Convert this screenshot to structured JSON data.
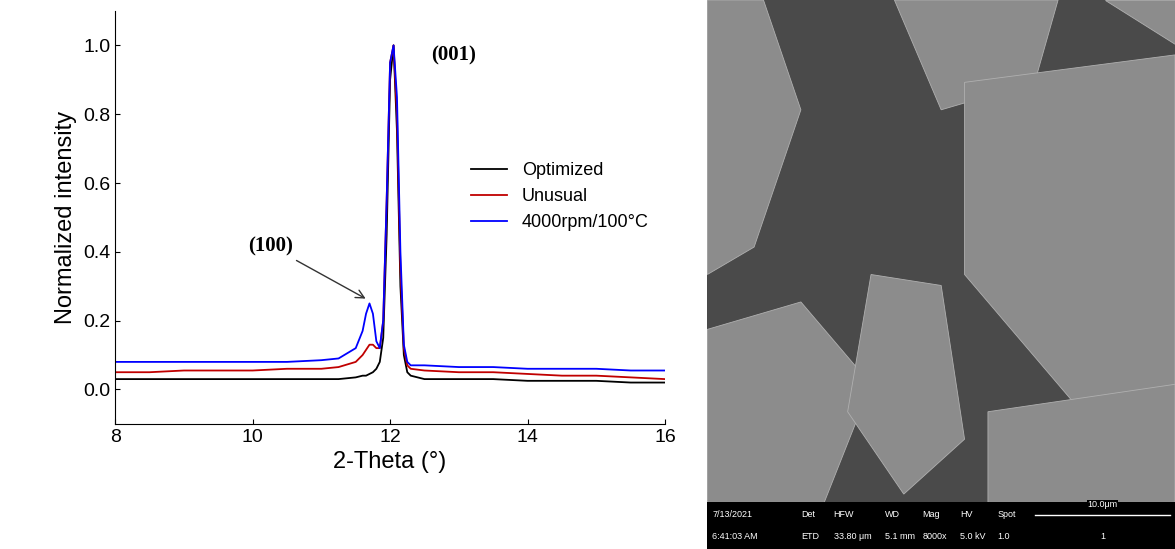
{
  "chart_data": {
    "type": "line",
    "x_label": "2-Theta (°)",
    "y_label": "Normalized intensity",
    "xlim": [
      8,
      16
    ],
    "xticks": [
      8,
      10,
      12,
      14,
      16
    ],
    "ylim": [
      -0.1,
      1.1
    ],
    "yticks": [
      0.0,
      0.2,
      0.4,
      0.6,
      0.8,
      1.0
    ],
    "legend": "center right",
    "grid": false,
    "annotations": [
      {
        "text": "(001)",
        "x": 12.6,
        "y": 0.97
      },
      {
        "text": "(100)",
        "x": 11.68,
        "y": 0.26,
        "arrow": true
      }
    ],
    "series": [
      {
        "name": "Optimized",
        "color": "#000000",
        "x": [
          8.0,
          8.5,
          9.0,
          9.5,
          10.0,
          10.5,
          11.0,
          11.25,
          11.5,
          11.6,
          11.65,
          11.7,
          11.75,
          11.8,
          11.85,
          11.9,
          11.95,
          12.0,
          12.05,
          12.1,
          12.15,
          12.2,
          12.25,
          12.3,
          12.5,
          13.0,
          13.5,
          14.0,
          14.5,
          15.0,
          15.5,
          16.0
        ],
        "values": [
          0.03,
          0.03,
          0.03,
          0.03,
          0.03,
          0.03,
          0.03,
          0.03,
          0.035,
          0.04,
          0.04,
          0.045,
          0.05,
          0.06,
          0.08,
          0.15,
          0.45,
          0.9,
          1.0,
          0.75,
          0.3,
          0.1,
          0.05,
          0.04,
          0.03,
          0.03,
          0.03,
          0.025,
          0.025,
          0.025,
          0.02,
          0.02
        ]
      },
      {
        "name": "Unusual",
        "color": "#c00000",
        "x": [
          8.0,
          8.5,
          9.0,
          9.5,
          10.0,
          10.5,
          11.0,
          11.25,
          11.5,
          11.6,
          11.65,
          11.7,
          11.75,
          11.8,
          11.85,
          11.9,
          11.95,
          12.0,
          12.05,
          12.1,
          12.15,
          12.2,
          12.25,
          12.3,
          12.5,
          13.0,
          13.5,
          14.0,
          14.5,
          15.0,
          15.5,
          16.0
        ],
        "values": [
          0.05,
          0.05,
          0.055,
          0.055,
          0.055,
          0.06,
          0.06,
          0.065,
          0.08,
          0.1,
          0.115,
          0.13,
          0.13,
          0.12,
          0.12,
          0.2,
          0.55,
          0.95,
          1.0,
          0.8,
          0.35,
          0.12,
          0.07,
          0.06,
          0.055,
          0.05,
          0.05,
          0.045,
          0.04,
          0.04,
          0.035,
          0.03
        ]
      },
      {
        "name": "4000rpm/100°C",
        "color": "#0000ff",
        "x": [
          8.0,
          8.5,
          9.0,
          9.5,
          10.0,
          10.5,
          11.0,
          11.25,
          11.5,
          11.6,
          11.65,
          11.7,
          11.75,
          11.8,
          11.85,
          11.9,
          11.95,
          12.0,
          12.05,
          12.1,
          12.15,
          12.2,
          12.25,
          12.3,
          12.5,
          13.0,
          13.5,
          14.0,
          14.5,
          15.0,
          15.5,
          16.0
        ],
        "values": [
          0.08,
          0.08,
          0.08,
          0.08,
          0.08,
          0.08,
          0.085,
          0.09,
          0.12,
          0.17,
          0.22,
          0.25,
          0.22,
          0.14,
          0.12,
          0.2,
          0.55,
          0.95,
          1.0,
          0.85,
          0.4,
          0.13,
          0.08,
          0.07,
          0.07,
          0.065,
          0.065,
          0.06,
          0.06,
          0.06,
          0.055,
          0.055
        ]
      }
    ]
  },
  "sem_image": {
    "info_bar": {
      "row1": [
        "7/13/2021",
        "Det",
        "HFW",
        "WD",
        "Mag",
        "HV",
        "Spot"
      ],
      "row2": [
        "6:41:03 AM",
        "ETD",
        "33.80 μm",
        "5.1 mm",
        "8000x",
        "5.0 kV",
        "1.0"
      ],
      "scale_bar": "10.0μm",
      "image_number": "1"
    }
  }
}
